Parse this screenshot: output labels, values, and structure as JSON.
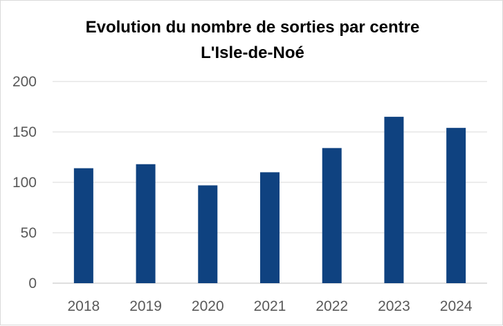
{
  "chart_data": {
    "type": "bar",
    "title": "Evolution du nombre de sorties par centre",
    "subtitle": "L'Isle-de-Noé",
    "xlabel": "",
    "ylabel": "",
    "categories": [
      "2018",
      "2019",
      "2020",
      "2021",
      "2022",
      "2023",
      "2024"
    ],
    "series": [
      {
        "values": [
          114,
          118,
          97,
          110,
          134,
          165,
          154
        ]
      }
    ],
    "ylim": [
      0,
      200
    ],
    "yticks": [
      "0",
      "50",
      "100",
      "150",
      "200"
    ],
    "grid": true,
    "legend": "none",
    "colors": {
      "bar": "#0f4280"
    }
  }
}
